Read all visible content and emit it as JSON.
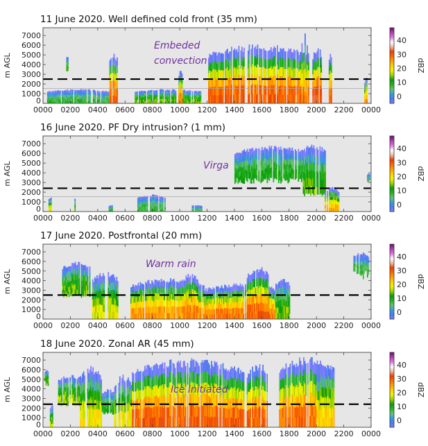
{
  "figure": {
    "colorbar_label": "dBZ",
    "colorbar_ticks": [
      0,
      10,
      20,
      30,
      40
    ],
    "colorbar_range": [
      -5,
      49
    ],
    "colormap": [
      "#8080ff",
      "#4f78f0",
      "#2ea0e0",
      "#6cc070",
      "#22b422",
      "#0a9a0a",
      "#9fd100",
      "#f2f200",
      "#ffd000",
      "#ffa000",
      "#ff6a00",
      "#e84000",
      "#f3b9a0",
      "#ffffff",
      "#e07ae0",
      "#b040b0",
      "#701070"
    ],
    "annotation_color": "#7030a0",
    "background_color": "#e6e6e6"
  },
  "chart_data": [
    {
      "type": "heatmap",
      "title": "11 June 2020. Well defined cold front (35 mm)",
      "ylabel": "m AGL",
      "xlabel": "",
      "x_tick_labels": [
        "0000",
        "0200",
        "0400",
        "0600",
        "0800",
        "1000",
        "1200",
        "1400",
        "1600",
        "1800",
        "2000",
        "2200",
        "0000"
      ],
      "xlim": [
        0,
        24
      ],
      "y_tick_labels": [
        "0",
        "1000",
        "2000",
        "3000",
        "4000",
        "5000",
        "6000",
        "7000"
      ],
      "ylim": [
        0,
        7800
      ],
      "dashed_line_height_m": 2500,
      "annotation": "Embeded convection",
      "annotation_lines": [
        "Embeded",
        "convection"
      ],
      "echoes": [
        {
          "t0": 0.3,
          "t1": 4.9,
          "ztop": 1500,
          "dbz": 8
        },
        {
          "t0": 1.7,
          "t1": 1.8,
          "zbot": 3600,
          "ztop": 5000,
          "dbz": 12
        },
        {
          "t0": 4.85,
          "t1": 5.45,
          "ztop": 5300,
          "dbz": 30
        },
        {
          "t0": 6.7,
          "t1": 11.5,
          "ztop": 1500,
          "dbz": 14
        },
        {
          "t0": 9.9,
          "t1": 10.2,
          "ztop": 3500,
          "dbz": 28
        },
        {
          "t0": 12.0,
          "t1": 19.5,
          "ztop": 6200,
          "dbz": 30
        },
        {
          "t0": 18.9,
          "t1": 19.3,
          "ztop": 7400,
          "dbz": 26
        },
        {
          "t0": 19.7,
          "t1": 20.4,
          "ztop": 5900,
          "dbz": 32
        },
        {
          "t0": 20.9,
          "t1": 21.1,
          "ztop": 5500,
          "dbz": 30
        },
        {
          "t0": 23.5,
          "t1": 23.7,
          "ztop": 2800,
          "dbz": 26
        }
      ]
    },
    {
      "type": "heatmap",
      "title": "16 June 2020. PF Dry intrusion? (1 mm)",
      "ylabel": "m AGL",
      "xlabel": "",
      "x_tick_labels": [
        "0000",
        "0200",
        "0400",
        "0600",
        "0800",
        "1000",
        "1200",
        "1400",
        "1600",
        "1800",
        "2000",
        "2200",
        "0000"
      ],
      "xlim": [
        0,
        24
      ],
      "y_tick_labels": [
        "0",
        "1000",
        "2000",
        "3000",
        "4000",
        "5000",
        "6000",
        "7000"
      ],
      "ylim": [
        0,
        7800
      ],
      "dashed_line_height_m": 2400,
      "annotation": "Virga",
      "annotation_lines": [
        "Virga"
      ],
      "echoes": [
        {
          "t0": 0.4,
          "t1": 0.6,
          "ztop": 1600,
          "dbz": 18
        },
        {
          "t0": 2.3,
          "t1": 2.5,
          "ztop": 1700,
          "dbz": 14
        },
        {
          "t0": 4.8,
          "t1": 5.1,
          "ztop": 700,
          "dbz": 8
        },
        {
          "t0": 6.9,
          "t1": 8.9,
          "ztop": 1800,
          "dbz": 8
        },
        {
          "t0": 10.8,
          "t1": 11.6,
          "ztop": 700,
          "dbz": 6
        },
        {
          "t0": 14.0,
          "t1": 19.5,
          "zbot": 3200,
          "ztop": 6800,
          "dbz": 10
        },
        {
          "t0": 19.0,
          "t1": 20.6,
          "zbot": 1800,
          "ztop": 7200,
          "dbz": 13
        },
        {
          "t0": 20.6,
          "t1": 21.6,
          "ztop": 2600,
          "dbz": 24
        },
        {
          "t0": 23.7,
          "t1": 23.9,
          "zbot": 3000,
          "ztop": 4000,
          "dbz": 6
        }
      ]
    },
    {
      "type": "heatmap",
      "title": "17 June 2020. Postfrontal (20 mm)",
      "ylabel": "m AGL",
      "xlabel": "",
      "x_tick_labels": [
        "0000",
        "0200",
        "0400",
        "0600",
        "0800",
        "1000",
        "1200",
        "1400",
        "1600",
        "1800",
        "2000",
        "2200",
        "0000"
      ],
      "xlim": [
        0,
        24
      ],
      "y_tick_labels": [
        "0",
        "1000",
        "2000",
        "3000",
        "4000",
        "5000",
        "6000",
        "7000"
      ],
      "ylim": [
        0,
        7800
      ],
      "dashed_line_height_m": 2500,
      "annotation": "Warm rain",
      "annotation_lines": [
        "Warm rain"
      ],
      "echoes": [
        {
          "t0": 1.4,
          "t1": 3.4,
          "zbot": 2500,
          "ztop": 6000,
          "dbz": 14
        },
        {
          "t0": 3.6,
          "t1": 5.5,
          "ztop": 5000,
          "dbz": 18
        },
        {
          "t0": 6.4,
          "t1": 11.8,
          "ztop": 4300,
          "dbz": 26
        },
        {
          "t0": 10.2,
          "t1": 11.3,
          "ztop": 4900,
          "dbz": 28
        },
        {
          "t0": 11.8,
          "t1": 17.2,
          "ztop": 3800,
          "dbz": 28
        },
        {
          "t0": 14.9,
          "t1": 16.5,
          "ztop": 5600,
          "dbz": 30
        },
        {
          "t0": 17.0,
          "t1": 18.0,
          "ztop": 4400,
          "dbz": 14
        },
        {
          "t0": 22.7,
          "t1": 23.8,
          "zbot": 4600,
          "ztop": 7000,
          "dbz": 8
        }
      ]
    },
    {
      "type": "heatmap",
      "title": "18 June 2020. Zonal AR (45 mm)",
      "ylabel": "m AGL",
      "xlabel": "",
      "x_tick_labels": [
        "0000",
        "0200",
        "0400",
        "0600",
        "0800",
        "1000",
        "1200",
        "1400",
        "1600",
        "1800",
        "2000",
        "2200",
        "0000"
      ],
      "xlim": [
        0,
        24
      ],
      "y_tick_labels": [
        "0",
        "1000",
        "2000",
        "3000",
        "4000",
        "5000",
        "6000",
        "7000"
      ],
      "ylim": [
        0,
        7800
      ],
      "dashed_line_height_m": 2400,
      "annotation": "Ice initiated",
      "annotation_lines": [
        "Ice initiated"
      ],
      "echoes": [
        {
          "t0": 0.1,
          "t1": 0.4,
          "zbot": 4500,
          "ztop": 6000,
          "dbz": 14
        },
        {
          "t0": 0.5,
          "t1": 0.8,
          "ztop": 2600,
          "dbz": 16
        },
        {
          "t0": 1.1,
          "t1": 3.0,
          "zbot": 2400,
          "ztop": 5500,
          "dbz": 16
        },
        {
          "t0": 2.7,
          "t1": 4.3,
          "ztop": 6400,
          "dbz": 20
        },
        {
          "t0": 4.3,
          "t1": 5.2,
          "zbot": 1500,
          "ztop": 4000,
          "dbz": 10
        },
        {
          "t0": 5.2,
          "t1": 6.5,
          "ztop": 5500,
          "dbz": 20
        },
        {
          "t0": 6.5,
          "t1": 14.7,
          "ztop": 7200,
          "dbz": 30
        },
        {
          "t0": 14.9,
          "t1": 16.6,
          "ztop": 6800,
          "dbz": 30
        },
        {
          "t0": 17.2,
          "t1": 21.3,
          "ztop": 7400,
          "dbz": 29
        },
        {
          "t0": 20.0,
          "t1": 21.3,
          "ztop": 7000,
          "dbz": 22
        }
      ]
    }
  ]
}
